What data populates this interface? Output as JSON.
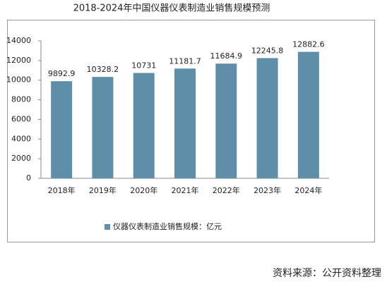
{
  "chart_data": {
    "type": "bar",
    "title": "2018-2024年中国仪器仪表制造业销售规模预测",
    "categories": [
      "2018年",
      "2019年",
      "2020年",
      "2021年",
      "2022年",
      "2023年",
      "2024年"
    ],
    "series": [
      {
        "name": "仪器仪表制造业销售规模：亿元",
        "color": "#5f8fa8",
        "values": [
          9892.9,
          10328.2,
          10731,
          11181.7,
          11684.9,
          12245.8,
          12882.6
        ]
      }
    ],
    "ylim": [
      0,
      14000
    ],
    "yticks": [
      0,
      2000,
      4000,
      6000,
      8000,
      10000,
      12000,
      14000
    ],
    "grid": false,
    "legend": "bottom",
    "source": "资料来源：公开资料整理"
  }
}
